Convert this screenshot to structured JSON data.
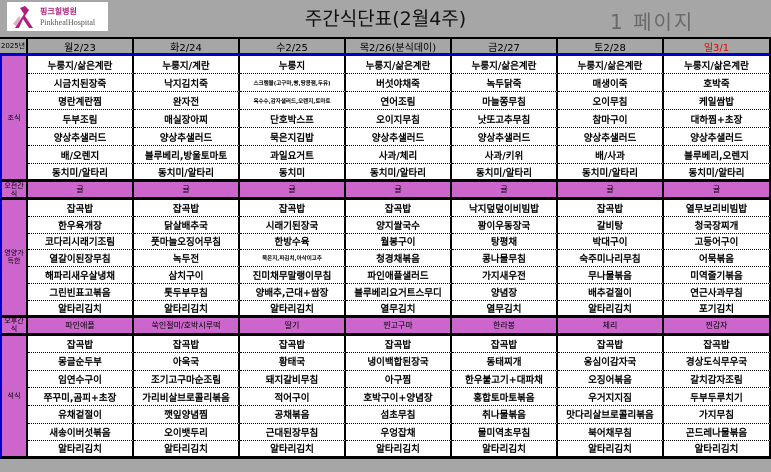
{
  "logo": {
    "kr": "핑크힐병원",
    "en": "PinkhealHospital"
  },
  "title": "주간식단표(2월4주)",
  "year_label": "2025년",
  "days": [
    "월2/23",
    "화2/24",
    "수2/25",
    "목2/26(분식데이)",
    "금2/27",
    "토2/28",
    "일3/1"
  ],
  "sunday_color": "#e00000",
  "accent_color": "#cc66cc",
  "border_color": "#0000cc",
  "breakfast": {
    "label": "조식",
    "rows": [
      [
        "누룽지/삶은계란",
        "누룽지/계란",
        "누룽지",
        "누룽지/삶은계란",
        "누룽지/삶은계란",
        "누룽지/삶은계란",
        "누룽지/삶은계란"
      ],
      [
        "시금치된장죽",
        "낙지김치죽",
        "스크램블(고구마,빵,땅콩잼,두유)",
        "버섯야채죽",
        "녹두닭죽",
        "매생이죽",
        "호박죽"
      ],
      [
        "명란계란찜",
        "완자전",
        "옥수수,감자샐러드,오렌지,토마토",
        "연어조림",
        "마늘쫑무침",
        "오이무침",
        "케일쌈밥"
      ],
      [
        "두부조림",
        "매실장아찌",
        "단호박스프",
        "오이지무침",
        "낫또고추무침",
        "참마구이",
        "대하찜+초장"
      ],
      [
        "양상추샐러드",
        "양상추샐러드",
        "묵은지김밥",
        "양상추샐러드",
        "양상추샐러드",
        "양상추샐러드",
        "양상추샐러드"
      ],
      [
        "배/오렌지",
        "블루베리,방울토마토",
        "과일요거트",
        "사과/체리",
        "사과/키위",
        "배/사과",
        "블루베리,오렌지"
      ],
      [
        "동치미/알타리",
        "동치미/알타리",
        "동치미",
        "동치미/알타리",
        "동치미/알타리",
        "동치미/알타리",
        "동치미/알타리"
      ]
    ]
  },
  "am_snack": {
    "label": "오전간식",
    "items": [
      "귤",
      "귤",
      "귤",
      "귤",
      "귤",
      "귤",
      "귤"
    ]
  },
  "lunch": {
    "label": "영양가득한",
    "rows": [
      [
        "잡곡밥",
        "잡곡밥",
        "잡곡밥",
        "잡곡밥",
        "낙지덮덮이비빔밥",
        "잡곡밥",
        "열무보리비빔밥"
      ],
      [
        "한우육개장",
        "닭살배추국",
        "시래기된장국",
        "양지쌀국수",
        "꽝이우동장국",
        "갈비탕",
        "청국장찌개"
      ],
      [
        "코다리시래기조림",
        "풋마늘오징어무침",
        "한방수육",
        "월봉구이",
        "탕평채",
        "박대구이",
        "고등어구이"
      ],
      [
        "열갈이된장무침",
        "녹두전",
        "묵은지,파김치,아삭이고추",
        "청경채볶음",
        "콩나물무침",
        "숙주미나리무침",
        "어묵볶음"
      ],
      [
        "해파리새우살냉채",
        "삼치구이",
        "진미채무말랭이무침",
        "파인애플샐러드",
        "가지새우전",
        "무나물볶음",
        "미역줄기볶음"
      ],
      [
        "그린빈표고볶음",
        "톳두부무침",
        "양배추,근대+쌈장",
        "블루베리요거트스무디",
        "양념장",
        "배추겉절이",
        "연근사과무침"
      ],
      [
        "알타리김치",
        "알타리김치",
        "알타리김치",
        "열무김치",
        "열무김치",
        "알타리김치",
        "포기김치"
      ]
    ]
  },
  "pm_snack": {
    "label": "오후간식",
    "items": [
      "파인애플",
      "쑥인절미/호박시루떡",
      "딸기",
      "찐고구마",
      "한라봉",
      "체리",
      "찐감자"
    ]
  },
  "dinner": {
    "label": "석식",
    "rows": [
      [
        "잡곡밥",
        "잡곡밥",
        "잡곡밥",
        "잡곡밥",
        "잡곡밥",
        "잡곡밥",
        "잡곡밥"
      ],
      [
        "몽글순두부",
        "아욱국",
        "황태국",
        "냉이백합된장국",
        "동태찌개",
        "옹심이감자국",
        "경상도식무우국"
      ],
      [
        "임연수구이",
        "조기고구마순조림",
        "돼지갈비무침",
        "아구찜",
        "한우불고기+대파채",
        "오징어볶음",
        "갈치감자조림"
      ],
      [
        "쭈꾸미,곰피+초장",
        "가리비살브로콜리볶음",
        "적어구이",
        "호박구이+양념장",
        "홍합토마토볶음",
        "우거지지짐",
        "두부두루치기"
      ],
      [
        "유채겉절이",
        "깻잎양념찜",
        "공채볶음",
        "섬초무침",
        "취나물볶음",
        "맛다리살브로콜리볶음",
        "가지무침"
      ],
      [
        "새송이버섯볶음",
        "오이뱃두리",
        "근대된장무침",
        "우엉잡채",
        "물미역초무침",
        "북어채무침",
        "곤드레나물볶음"
      ],
      [
        "알타리김치",
        "알타리김치",
        "알타리김치",
        "알타리김치",
        "알타리김치",
        "알타리김치",
        "알타리김치"
      ]
    ]
  },
  "watermark": "1 페이지"
}
